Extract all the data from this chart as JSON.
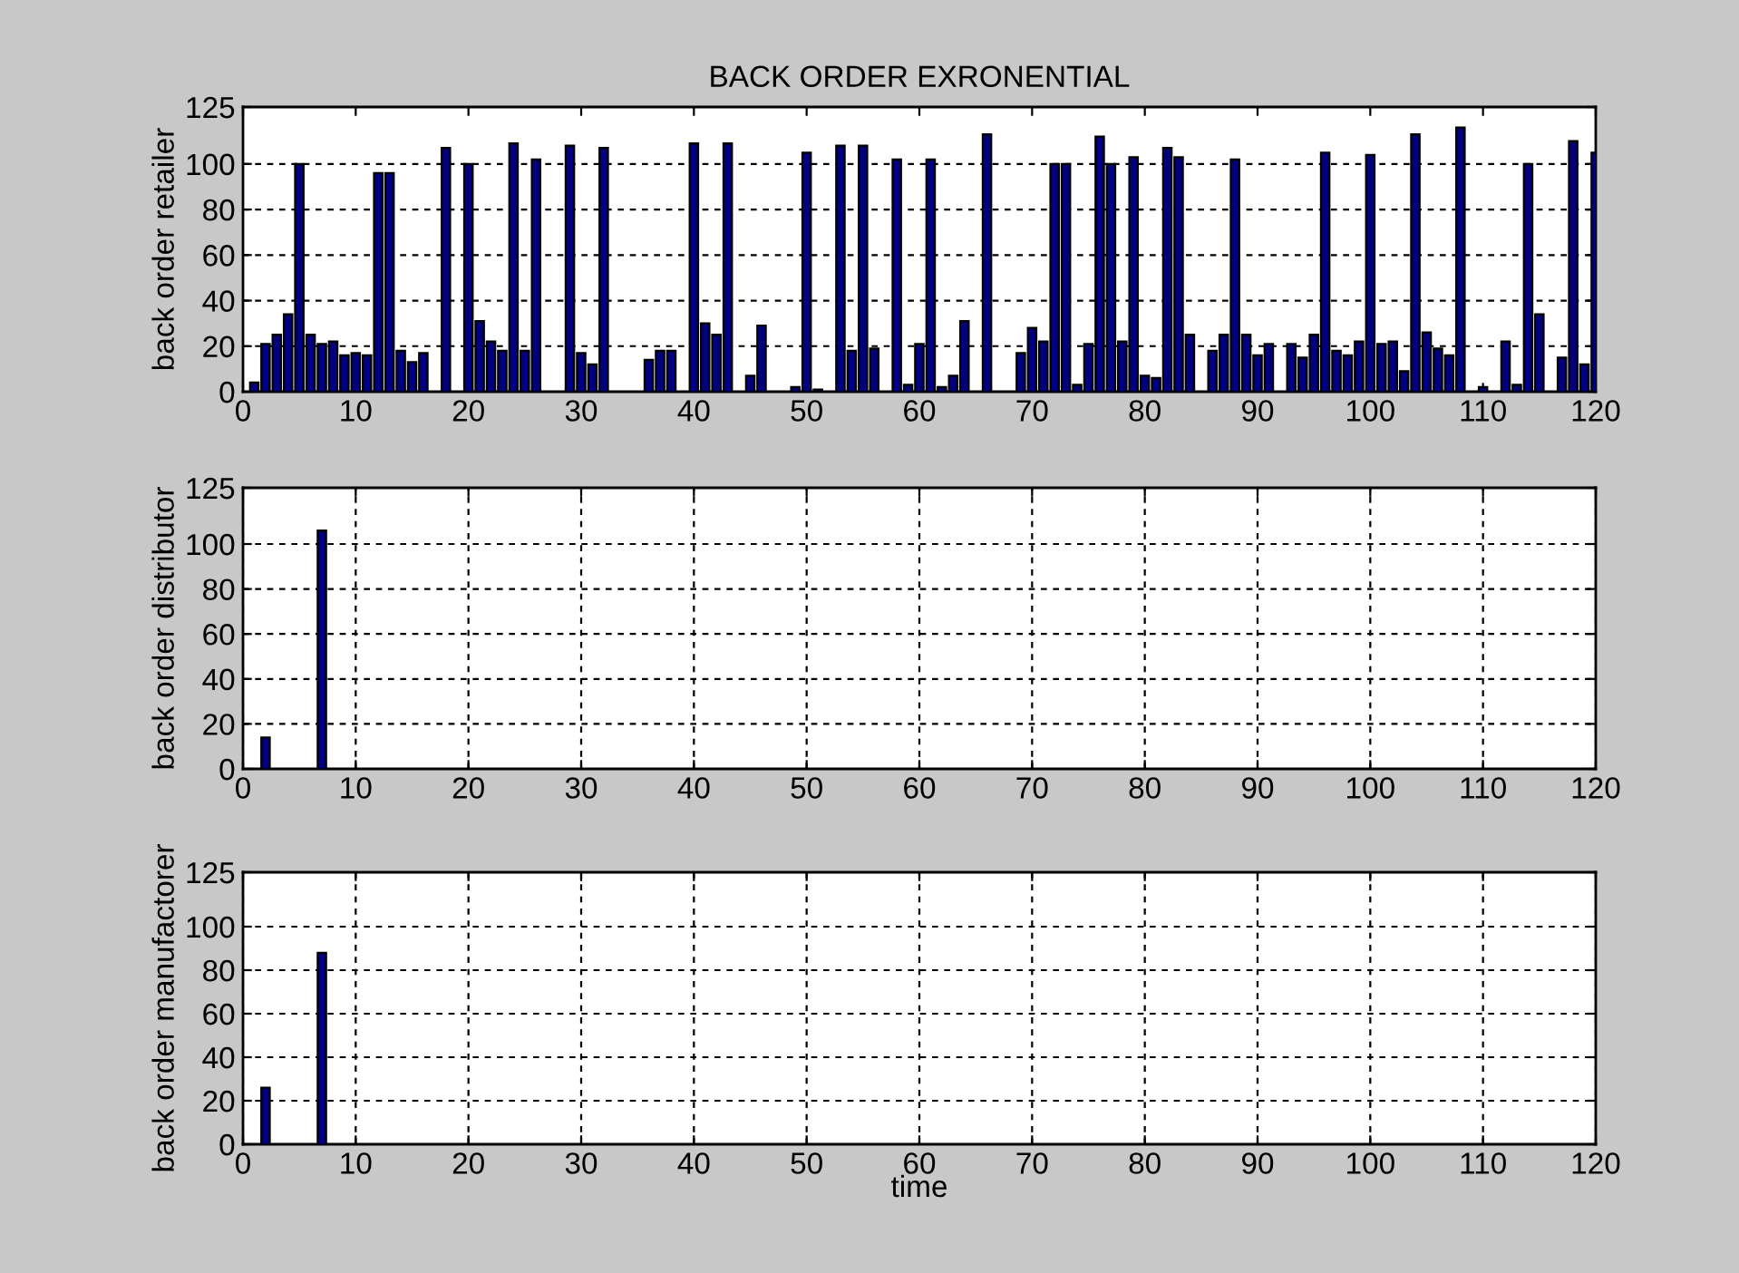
{
  "chart_data": [
    {
      "type": "bar",
      "title": "BACK ORDER EXRONENTIAL",
      "ylabel": "back order retailer",
      "color": "#000080",
      "x": [
        1,
        2,
        3,
        4,
        5,
        6,
        7,
        8,
        9,
        10,
        11,
        12,
        13,
        14,
        15,
        16,
        17,
        18,
        19,
        20,
        21,
        22,
        23,
        24,
        25,
        26,
        27,
        28,
        29,
        30,
        31,
        32,
        33,
        34,
        35,
        36,
        37,
        38,
        39,
        40,
        41,
        42,
        43,
        44,
        45,
        46,
        47,
        48,
        49,
        50,
        51,
        52,
        53,
        54,
        55,
        56,
        57,
        58,
        59,
        60,
        61,
        62,
        63,
        64,
        65,
        66,
        67,
        68,
        69,
        70,
        71,
        72,
        73,
        74,
        75,
        76,
        77,
        78,
        79,
        80,
        81,
        82,
        83,
        84,
        85,
        86,
        87,
        88,
        89,
        90,
        91,
        92,
        93,
        94,
        95,
        96,
        97,
        98,
        99,
        100,
        101,
        102,
        103,
        104,
        105,
        106,
        107,
        108,
        109,
        110,
        111,
        112,
        113,
        114,
        115,
        116,
        117,
        118,
        119,
        120
      ],
      "values": [
        4,
        21,
        25,
        34,
        100,
        25,
        21,
        22,
        16,
        17,
        16,
        96,
        96,
        18,
        13,
        17,
        null,
        107,
        null,
        100,
        31,
        22,
        18,
        109,
        18,
        102,
        null,
        null,
        108,
        17,
        12,
        107,
        null,
        null,
        null,
        14,
        18,
        18,
        null,
        109,
        30,
        25,
        109,
        null,
        7,
        29,
        null,
        null,
        2,
        105,
        1,
        null,
        108,
        18,
        108,
        19,
        null,
        102,
        3,
        21,
        102,
        2,
        7,
        31,
        null,
        113,
        null,
        null,
        17,
        28,
        22,
        100,
        100,
        3,
        21,
        112,
        100,
        22,
        103,
        7,
        6,
        107,
        103,
        25,
        null,
        18,
        25,
        102,
        25,
        16,
        21,
        null,
        21,
        15,
        25,
        105,
        18,
        16,
        22,
        104,
        21,
        22,
        9,
        113,
        26,
        19,
        16,
        116,
        null,
        2,
        null,
        22,
        3,
        100,
        34,
        null,
        15,
        110,
        12,
        105
      ],
      "xlim": [
        0,
        120
      ],
      "ylim": [
        0,
        125
      ],
      "xticks": [
        0,
        10,
        20,
        30,
        40,
        50,
        60,
        70,
        80,
        90,
        100,
        110,
        120
      ],
      "yticks": [
        0,
        20,
        40,
        60,
        80,
        100,
        125
      ],
      "grid": "y"
    },
    {
      "type": "bar",
      "ylabel": "back order distributor",
      "color": "#000080",
      "x": [
        2,
        7
      ],
      "values": [
        14,
        106
      ],
      "xlim": [
        0,
        120
      ],
      "ylim": [
        0,
        125
      ],
      "xticks": [
        0,
        10,
        20,
        30,
        40,
        50,
        60,
        70,
        80,
        90,
        100,
        110,
        120
      ],
      "yticks": [
        0,
        20,
        40,
        60,
        80,
        100,
        125
      ],
      "grid": true
    },
    {
      "type": "bar",
      "ylabel": "back order manufactorer",
      "xlabel": "time",
      "color": "#000080",
      "x": [
        2,
        7
      ],
      "values": [
        26,
        88
      ],
      "xlim": [
        0,
        120
      ],
      "ylim": [
        0,
        125
      ],
      "xticks": [
        0,
        10,
        20,
        30,
        40,
        50,
        60,
        70,
        80,
        90,
        100,
        110,
        120
      ],
      "yticks": [
        0,
        20,
        40,
        60,
        80,
        100,
        125
      ],
      "grid": true
    }
  ]
}
